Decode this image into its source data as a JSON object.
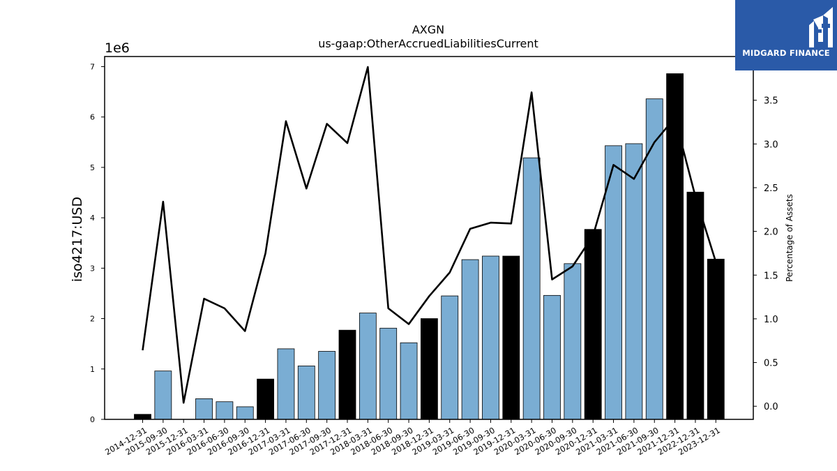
{
  "logo": {
    "text": "MIDGARD FINANCE"
  },
  "colors": {
    "bar_quarter": "#7aadd3",
    "bar_year_end": "#000000",
    "line": "#000000",
    "logo_bg": "#2a5aa8"
  },
  "chart_data": {
    "type": "bar",
    "title": "AXGN",
    "subtitle": "us-gaap:OtherAccruedLiabilitiesCurrent",
    "ylabel": "iso4217:USD",
    "y2label": "Percentage of Assets",
    "y_offset_text": "1e6",
    "ylim": [
      0,
      7200000
    ],
    "y2lim": [
      -0.15,
      4.0
    ],
    "yticks": [
      0,
      1,
      2,
      3,
      4,
      5,
      6,
      7
    ],
    "y2ticks": [
      "0.0",
      "0.5",
      "1.0",
      "1.5",
      "2.0",
      "2.5",
      "3.0",
      "3.5"
    ],
    "categories": [
      "2014-12-31",
      "2015-09-30",
      "2015-12-31",
      "2016-03-31",
      "2016-06-30",
      "2016-09-30",
      "2016-12-31",
      "2017-03-31",
      "2017-06-30",
      "2017-09-30",
      "2017-12-31",
      "2018-03-31",
      "2018-06-30",
      "2018-09-30",
      "2018-12-31",
      "2019-03-31",
      "2019-06-30",
      "2019-09-30",
      "2019-12-31",
      "2020-03-31",
      "2020-06-30",
      "2020-09-30",
      "2020-12-31",
      "2021-03-31",
      "2021-06-30",
      "2021-09-30",
      "2021-12-31",
      "2022-12-31",
      "2023-12-31"
    ],
    "series": [
      {
        "values": [
          100000,
          960000,
          0,
          410000,
          350000,
          250000,
          800000,
          1400000,
          1060000,
          1350000,
          1770000,
          2110000,
          1810000,
          1520000,
          2000000,
          2450000,
          3170000,
          3240000,
          3240000,
          5190000,
          2460000,
          3090000,
          3770000,
          5430000,
          5470000,
          6360000,
          6860000,
          4510000,
          3180000
        ]
      },
      {
        "values": [
          0.64,
          2.34,
          0.04,
          1.23,
          1.12,
          0.86,
          1.75,
          3.26,
          2.49,
          3.23,
          3.01,
          3.88,
          1.12,
          0.94,
          1.26,
          1.53,
          2.03,
          2.1,
          2.09,
          3.59,
          1.45,
          1.6,
          1.95,
          2.76,
          2.6,
          3.02,
          3.3,
          2.4,
          1.65
        ]
      }
    ],
    "year_end": [
      true,
      false,
      false,
      false,
      false,
      false,
      true,
      false,
      false,
      false,
      true,
      false,
      false,
      false,
      true,
      false,
      false,
      false,
      true,
      false,
      false,
      false,
      true,
      false,
      false,
      false,
      true,
      true,
      true
    ]
  }
}
